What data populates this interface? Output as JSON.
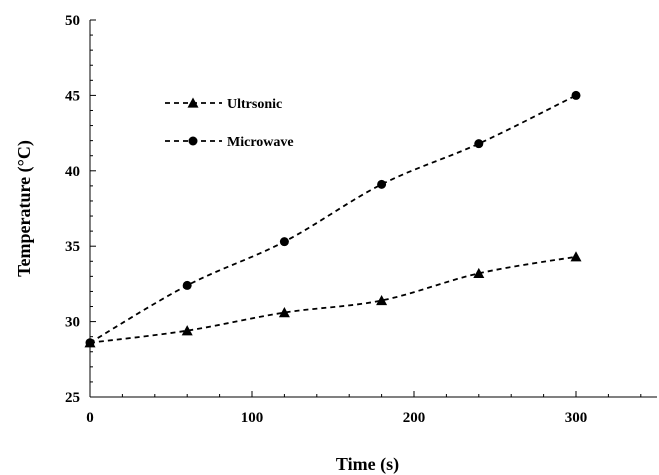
{
  "chart_data": {
    "type": "line",
    "title": "",
    "xlabel": "Time (s)",
    "ylabel": "Temperature (°C)",
    "xlim": [
      0,
      350
    ],
    "ylim": [
      25,
      50
    ],
    "xticks": [
      0,
      100,
      200,
      300
    ],
    "yticks": [
      25,
      30,
      35,
      40,
      45,
      50
    ],
    "x": [
      0,
      60,
      120,
      180,
      240,
      300
    ],
    "series": [
      {
        "name": "Ultrsonic",
        "marker": "triangle",
        "values": [
          28.6,
          29.4,
          30.6,
          31.4,
          33.2,
          34.3
        ]
      },
      {
        "name": "Microwave",
        "marker": "circle",
        "values": [
          28.6,
          32.4,
          35.3,
          39.1,
          41.8,
          45.0
        ]
      }
    ],
    "legend": "top-left",
    "grid": false,
    "colors": {
      "line": "#000000",
      "marker": "#000000"
    }
  }
}
